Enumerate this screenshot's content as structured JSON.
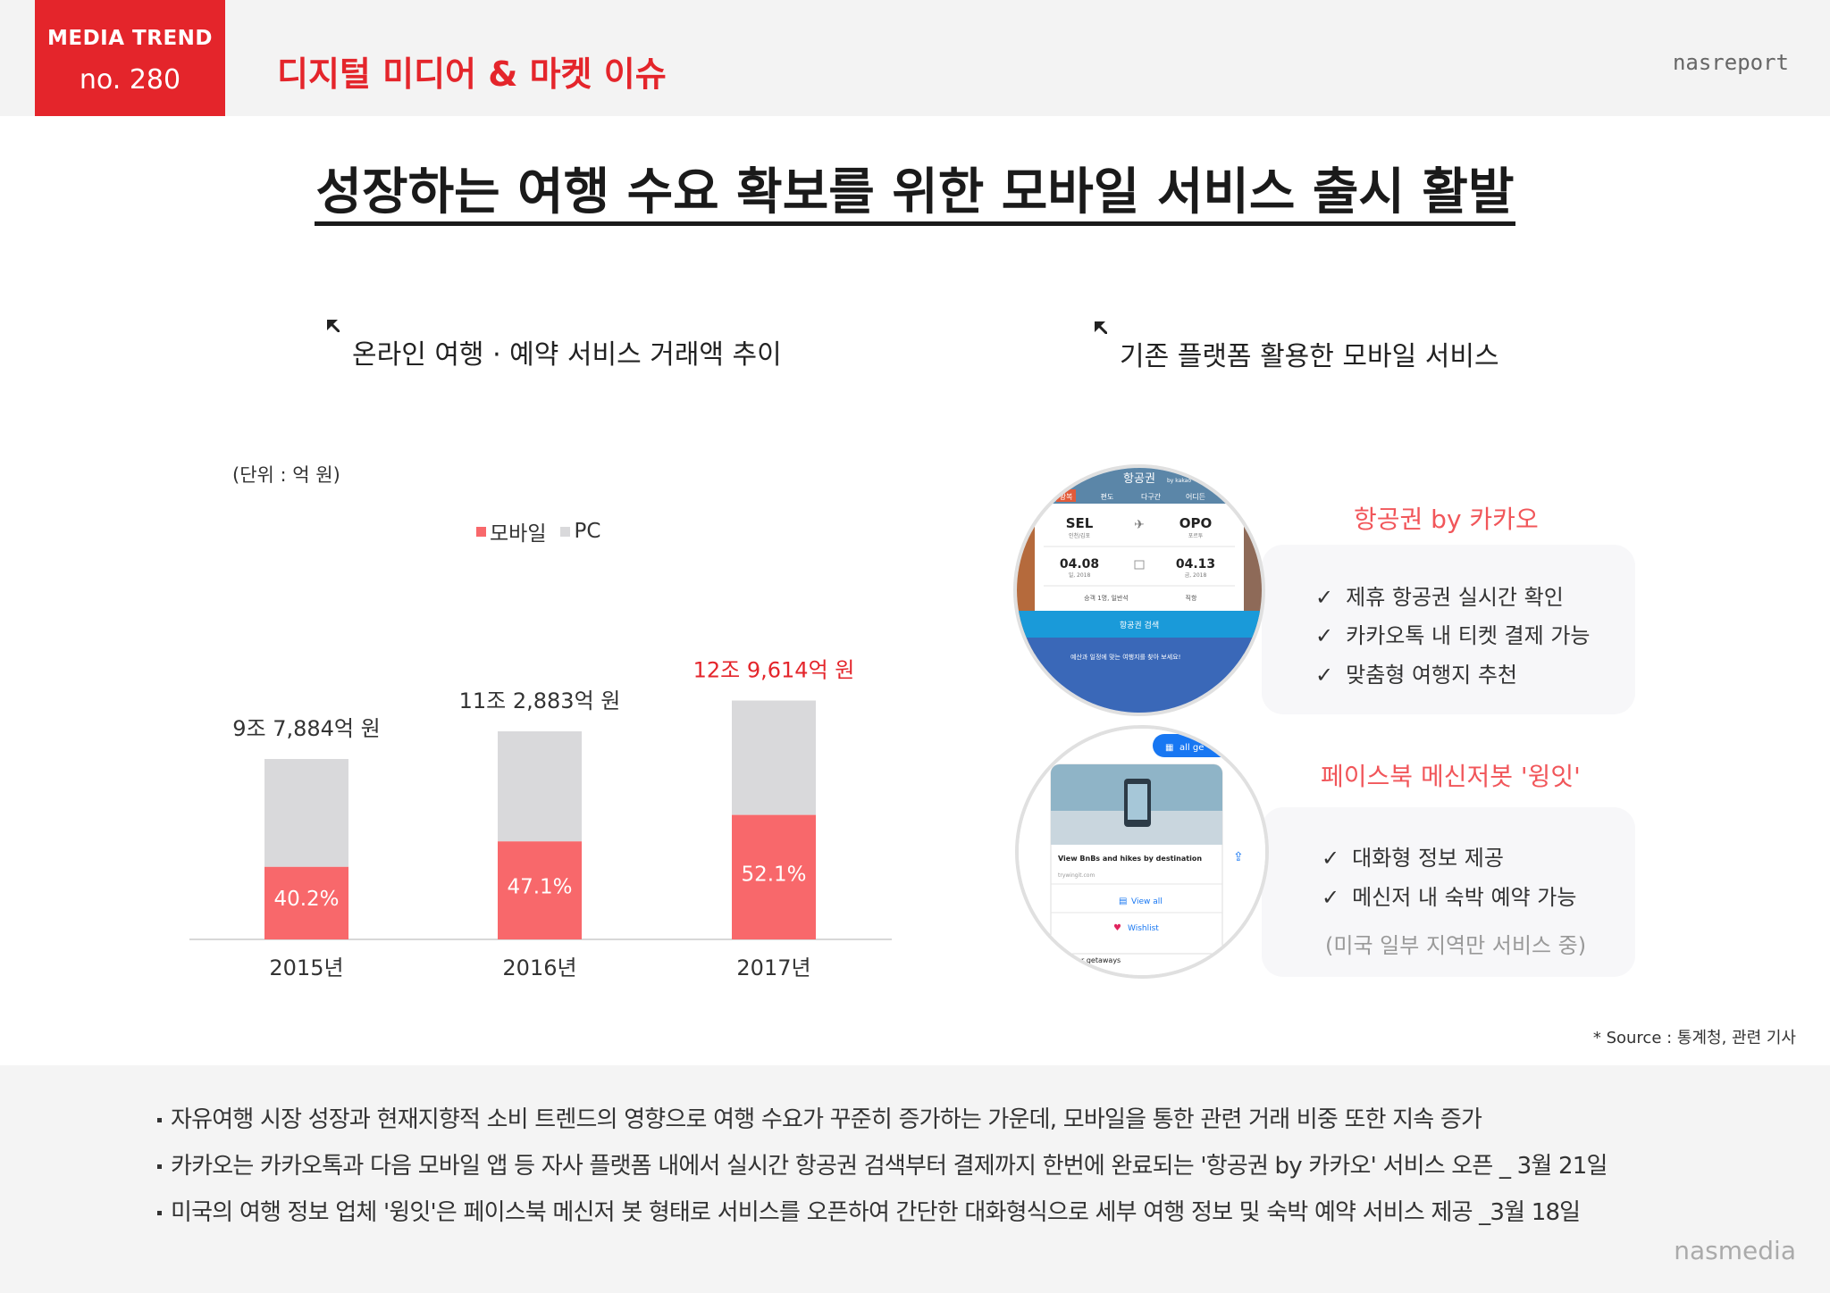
{
  "header": {
    "badge_line1": "MEDIA TREND",
    "badge_line2": "no. 280",
    "title": "디지털 미디어 & 마켓 이슈",
    "brand": "nasreport",
    "accent_color": "#e4252b"
  },
  "main_title": "성장하는 여행 수요 확보를 위한 모바일 서비스 출시 활발",
  "left_section": {
    "title": "온라인 여행 · 예약 서비스 거래액 추이",
    "unit": "(단위 : 억 원)"
  },
  "right_section": {
    "title": "기존 플랫폼 활용한 모바일 서비스"
  },
  "chart_data": {
    "type": "bar",
    "stacked": true,
    "categories": [
      "2015년",
      "2016년",
      "2017년"
    ],
    "totals": [
      97884,
      112883,
      129614
    ],
    "total_labels": [
      "9조 7,884억 원",
      "11조 2,883억 원",
      "12조 9,614억 원"
    ],
    "highlight_index": 2,
    "series": [
      {
        "name": "모바일",
        "color": "#f8686b",
        "share_pct": [
          40.2,
          47.1,
          52.1
        ],
        "share_labels": [
          "40.2%",
          "47.1%",
          "52.1%"
        ]
      },
      {
        "name": "PC",
        "color": "#d9d9db"
      }
    ],
    "legend_position": "top"
  },
  "services": [
    {
      "title": "항공권 by 카카오",
      "features": [
        "제휴 항공권 실시간 확인",
        "카카오톡 내 티켓 결제 가능",
        "맞춤형 여행지 추천"
      ],
      "screenshot": {
        "app_title": "항공권",
        "app_sub": "by kakao",
        "tabs": [
          "왕복",
          "편도",
          "다구간",
          "어디든"
        ],
        "from_code": "SEL",
        "from_name": "인천/김포",
        "to_code": "OPO",
        "to_name": "포르투",
        "date_from": "04.08",
        "date_from_sub": "일, 2018",
        "date_to": "04.13",
        "date_to_sub": "금, 2018",
        "passenger": "승객 1명, 일반석",
        "direct": "직항",
        "search_button": "항공권 검색",
        "promo": "예산과 일정에 맞는 여행지를 찾아 보세요!"
      }
    },
    {
      "title": "페이스북 메신저봇 '윙잇'",
      "features": [
        "대화형 정보 제공",
        "메신저 내 숙박 예약 가능"
      ],
      "note": "(미국 일부 지역만 서비스 중)",
      "screenshot": {
        "chip": "all ge",
        "card_title": "View BnBs and hikes by destination",
        "card_url": "trywingit.com",
        "view_all": "View all",
        "wishlist": "Wishlist",
        "bottom": "r getaways"
      }
    }
  ],
  "source": "* Source : 통계청, 관련 기사",
  "bullets": [
    "자유여행 시장 성장과 현재지향적 소비 트렌드의 영향으로 여행 수요가 꾸준히 증가하는 가운데, 모바일을 통한 관련 거래 비중 또한 지속 증가",
    "카카오는 카카오톡과 다음 모바일 앱 등 자사 플랫폼 내에서 실시간 항공권 검색부터 결제까지 한번에 완료되는 '항공권 by 카카오' 서비스 오픈 _ 3월 21일",
    "미국의 여행 정보 업체 '윙잇'은 페이스북 메신저 봇 형태로 서비스를 오픈하여 간단한 대화형식으로 세부 여행 정보 및 숙박 예약 서비스 제공 _3월 18일"
  ],
  "footer_brand": "nasmedia"
}
